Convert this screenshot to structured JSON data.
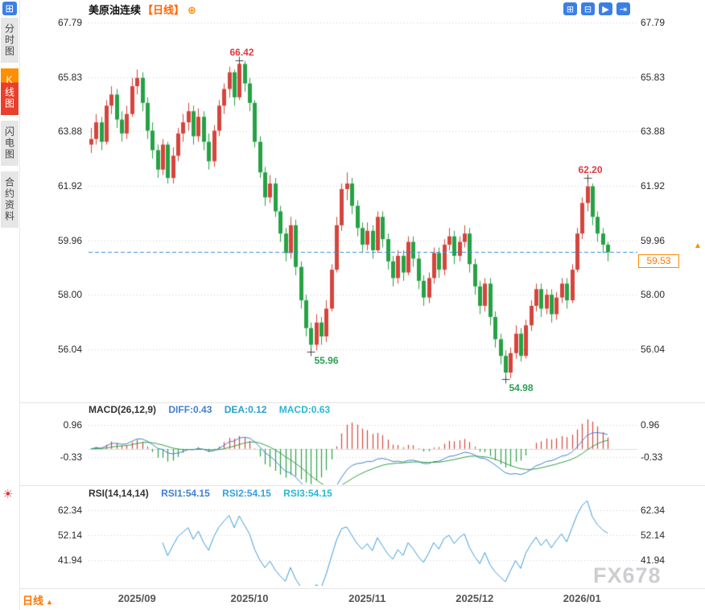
{
  "header": {
    "title": "美原油连续",
    "period_tag": "【日线】"
  },
  "icons": {
    "grid": "⊞",
    "panels": "⊟",
    "play": "▶",
    "skip": "⇥",
    "add": "⊕",
    "sun": "☀",
    "up_arrow": "▲",
    "tab_arrow": "▲"
  },
  "sidebar": {
    "items": [
      {
        "label": "分时图",
        "active": false
      },
      {
        "label": "K线图",
        "active": true
      },
      {
        "label": "闪电图",
        "active": false
      },
      {
        "label": "合约资料",
        "active": false
      }
    ]
  },
  "macd_panel": {
    "title": "MACD(26,12,9)",
    "diff": "DIFF:0.43",
    "dea": "DEA:0.12",
    "macd": "MACD:0.63"
  },
  "rsi_panel": {
    "title": "RSI(14,14,14)",
    "rsi1": "RSI1:54.15",
    "rsi2": "RSI2:54.15",
    "rsi3": "RSI3:54.15"
  },
  "price_tag": {
    "label": "59.53"
  },
  "bottom_tab": {
    "label": "日线"
  },
  "watermark": "FX678",
  "colors": {
    "up": "#d5453c",
    "down": "#26a244",
    "grid_dotted": "#cfcfcf",
    "dashed_line": "#3f8fd2",
    "diff_line": "#3f7fd0",
    "dea_line": "#2f9e44",
    "rsi_line": "#3a9ad9",
    "accent_orange": "#ff7700",
    "toolbar_blue": "#3b7fe4"
  },
  "chart_data": {
    "type": "candlestick",
    "symbol": "美原油连续",
    "period": "日线",
    "y_ticks": [
      67.79,
      65.83,
      63.88,
      61.92,
      59.96,
      58.0,
      56.04
    ],
    "x_ticks": [
      {
        "label": "2025/09",
        "index": 9
      },
      {
        "label": "2025/10",
        "index": 31
      },
      {
        "label": "2025/11",
        "index": 54
      },
      {
        "label": "2025/12",
        "index": 75
      },
      {
        "label": "2026/01",
        "index": 96
      }
    ],
    "current_price": 59.53,
    "annotations": [
      {
        "text": "66.42",
        "index": 29,
        "value": 66.42,
        "color": "#e0393f",
        "placement": "above"
      },
      {
        "text": "62.20",
        "index": 97,
        "value": 62.2,
        "color": "#e0393f",
        "placement": "above"
      },
      {
        "text": "55.96",
        "index": 43,
        "value": 55.96,
        "color": "#2aa052",
        "placement": "below"
      },
      {
        "text": "54.98",
        "index": 81,
        "value": 54.98,
        "color": "#2aa052",
        "placement": "below"
      }
    ],
    "indicators": {
      "macd": {
        "params": [
          26,
          12,
          9
        ],
        "diff": 0.43,
        "dea": 0.12,
        "macd": 0.63,
        "y_ticks": [
          0.96,
          -0.33
        ]
      },
      "rsi": {
        "params": [
          14,
          14,
          14
        ],
        "rsi1": 54.15,
        "rsi2": 54.15,
        "rsi3": 54.15,
        "y_ticks": [
          62.34,
          52.14,
          41.94
        ]
      }
    },
    "ohlc": [
      [
        63.4,
        64.0,
        63.1,
        63.6
      ],
      [
        63.6,
        64.5,
        63.4,
        64.2
      ],
      [
        64.2,
        64.4,
        63.2,
        63.5
      ],
      [
        63.5,
        65.0,
        63.4,
        64.8
      ],
      [
        64.8,
        65.5,
        64.5,
        65.2
      ],
      [
        65.2,
        65.4,
        64.0,
        64.3
      ],
      [
        64.3,
        64.6,
        63.5,
        63.8
      ],
      [
        63.8,
        64.8,
        63.6,
        64.5
      ],
      [
        64.5,
        65.8,
        64.4,
        65.5
      ],
      [
        65.5,
        66.1,
        65.2,
        65.8
      ],
      [
        65.8,
        66.0,
        64.6,
        64.9
      ],
      [
        64.9,
        65.1,
        63.6,
        63.9
      ],
      [
        63.9,
        64.2,
        62.9,
        63.2
      ],
      [
        63.2,
        63.4,
        62.2,
        62.5
      ],
      [
        62.5,
        63.6,
        62.3,
        63.4
      ],
      [
        63.4,
        63.5,
        62.0,
        62.2
      ],
      [
        62.2,
        63.3,
        62.0,
        63.0
      ],
      [
        63.0,
        64.0,
        62.8,
        63.8
      ],
      [
        63.8,
        64.5,
        63.5,
        64.2
      ],
      [
        64.2,
        64.9,
        63.9,
        64.6
      ],
      [
        64.6,
        64.8,
        63.4,
        63.7
      ],
      [
        63.7,
        64.7,
        63.5,
        64.4
      ],
      [
        64.4,
        64.6,
        63.2,
        63.5
      ],
      [
        63.5,
        63.8,
        62.5,
        62.8
      ],
      [
        62.8,
        64.1,
        62.6,
        63.9
      ],
      [
        63.9,
        65.0,
        63.7,
        64.8
      ],
      [
        64.8,
        65.6,
        64.5,
        65.4
      ],
      [
        65.4,
        66.2,
        65.1,
        66.0
      ],
      [
        66.0,
        66.1,
        64.8,
        65.1
      ],
      [
        65.1,
        66.42,
        65.0,
        66.3
      ],
      [
        66.3,
        66.4,
        65.3,
        65.6
      ],
      [
        65.6,
        65.8,
        64.6,
        64.9
      ],
      [
        64.9,
        65.0,
        63.3,
        63.5
      ],
      [
        63.5,
        63.7,
        62.2,
        62.4
      ],
      [
        62.4,
        62.6,
        61.2,
        61.5
      ],
      [
        61.5,
        62.3,
        61.3,
        62.0
      ],
      [
        62.0,
        62.2,
        60.8,
        61.0
      ],
      [
        61.0,
        61.2,
        59.9,
        60.2
      ],
      [
        60.2,
        60.4,
        59.2,
        59.5
      ],
      [
        59.5,
        60.8,
        59.3,
        60.5
      ],
      [
        60.5,
        60.7,
        58.7,
        59.0
      ],
      [
        59.0,
        59.2,
        57.5,
        57.8
      ],
      [
        57.8,
        58.0,
        56.5,
        56.8
      ],
      [
        56.8,
        57.0,
        55.96,
        56.2
      ],
      [
        56.2,
        57.3,
        56.0,
        57.0
      ],
      [
        57.0,
        57.2,
        56.2,
        56.5
      ],
      [
        56.5,
        57.8,
        56.3,
        57.5
      ],
      [
        57.5,
        59.1,
        57.4,
        58.9
      ],
      [
        58.9,
        60.8,
        58.8,
        60.5
      ],
      [
        60.5,
        62.0,
        60.3,
        61.8
      ],
      [
        61.8,
        62.4,
        61.4,
        62.0
      ],
      [
        62.0,
        62.2,
        60.9,
        61.2
      ],
      [
        61.2,
        61.4,
        60.1,
        60.4
      ],
      [
        60.4,
        60.6,
        59.5,
        59.8
      ],
      [
        59.8,
        60.6,
        59.6,
        60.3
      ],
      [
        60.3,
        60.5,
        59.3,
        59.6
      ],
      [
        59.6,
        61.0,
        59.5,
        60.8
      ],
      [
        60.8,
        61.0,
        59.7,
        60.0
      ],
      [
        60.0,
        60.2,
        58.9,
        59.2
      ],
      [
        59.2,
        59.4,
        58.3,
        58.6
      ],
      [
        58.6,
        59.6,
        58.4,
        59.4
      ],
      [
        59.4,
        59.6,
        58.5,
        58.8
      ],
      [
        58.8,
        60.1,
        58.7,
        59.9
      ],
      [
        59.9,
        60.1,
        59.0,
        59.3
      ],
      [
        59.3,
        59.5,
        58.2,
        58.5
      ],
      [
        58.5,
        58.7,
        57.6,
        57.9
      ],
      [
        57.9,
        58.8,
        57.7,
        58.6
      ],
      [
        58.6,
        59.7,
        58.4,
        59.5
      ],
      [
        59.5,
        59.7,
        58.6,
        58.9
      ],
      [
        58.9,
        60.0,
        58.7,
        59.8
      ],
      [
        59.8,
        60.4,
        59.6,
        60.1
      ],
      [
        60.1,
        60.3,
        59.1,
        59.4
      ],
      [
        59.4,
        60.1,
        59.2,
        59.9
      ],
      [
        59.9,
        60.5,
        59.7,
        60.2
      ],
      [
        60.2,
        60.4,
        58.8,
        59.1
      ],
      [
        59.1,
        59.3,
        58.0,
        58.3
      ],
      [
        58.3,
        58.5,
        57.3,
        57.6
      ],
      [
        57.6,
        58.6,
        57.4,
        58.4
      ],
      [
        58.4,
        58.6,
        56.9,
        57.2
      ],
      [
        57.2,
        57.4,
        56.1,
        56.4
      ],
      [
        56.4,
        56.6,
        55.5,
        55.8
      ],
      [
        55.8,
        56.0,
        54.98,
        55.2
      ],
      [
        55.2,
        56.1,
        55.0,
        55.9
      ],
      [
        55.9,
        56.9,
        55.7,
        56.6
      ],
      [
        56.6,
        56.8,
        55.6,
        55.8
      ],
      [
        55.8,
        57.1,
        55.7,
        56.9
      ],
      [
        56.9,
        57.8,
        56.7,
        57.6
      ],
      [
        57.6,
        58.4,
        57.4,
        58.2
      ],
      [
        58.2,
        58.4,
        57.2,
        57.5
      ],
      [
        57.5,
        58.2,
        57.3,
        58.0
      ],
      [
        58.0,
        58.2,
        57.0,
        57.3
      ],
      [
        57.3,
        58.1,
        57.1,
        57.9
      ],
      [
        57.9,
        58.6,
        57.7,
        58.4
      ],
      [
        58.4,
        58.6,
        57.5,
        57.8
      ],
      [
        57.8,
        59.1,
        57.7,
        58.9
      ],
      [
        58.9,
        60.4,
        58.8,
        60.2
      ],
      [
        60.2,
        61.5,
        60.0,
        61.3
      ],
      [
        61.3,
        62.2,
        61.0,
        61.9
      ],
      [
        61.9,
        62.0,
        60.5,
        60.8
      ],
      [
        60.8,
        61.0,
        59.9,
        60.2
      ],
      [
        60.2,
        60.4,
        59.5,
        59.8
      ],
      [
        59.8,
        59.9,
        59.2,
        59.53
      ]
    ]
  }
}
